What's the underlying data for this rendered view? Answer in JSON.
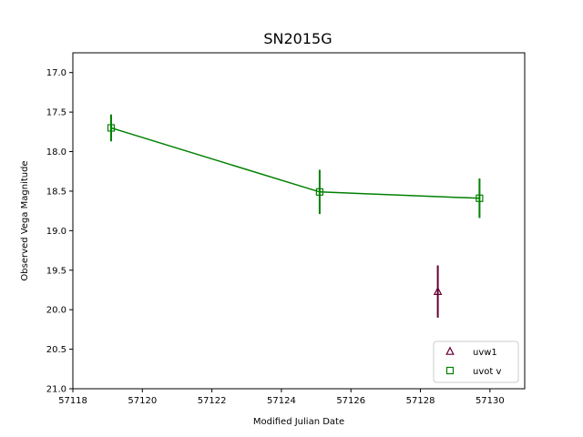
{
  "chart_data": {
    "type": "scatter",
    "title": "SN2015G",
    "xlabel": "Modified Julian Date",
    "ylabel": "Observed Vega Magnitude",
    "xlim": [
      57118,
      57131
    ],
    "ylim": [
      21.0,
      16.75
    ],
    "y_inverted": true,
    "xticks": [
      57118,
      57120,
      57122,
      57124,
      57126,
      57128,
      57130
    ],
    "yticks": [
      17.0,
      17.5,
      18.0,
      18.5,
      19.0,
      19.5,
      20.0,
      20.5,
      21.0
    ],
    "grid": false,
    "legend_position": "lower-right",
    "series": [
      {
        "name": "uvw1",
        "color": "#660033",
        "marker": "triangle",
        "line": false,
        "points": [
          {
            "x": 57128.5,
            "y": 19.77,
            "err": 0.33
          }
        ]
      },
      {
        "name": "uvot v",
        "color": "#008000",
        "marker": "square",
        "line": true,
        "points": [
          {
            "x": 57119.1,
            "y": 17.7,
            "err": 0.17
          },
          {
            "x": 57125.1,
            "y": 18.51,
            "err": 0.28
          },
          {
            "x": 57129.7,
            "y": 18.59,
            "err": 0.25
          }
        ]
      }
    ]
  }
}
